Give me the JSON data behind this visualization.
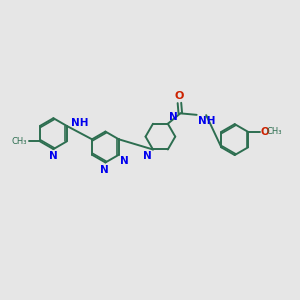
{
  "bg_color": "#e6e6e6",
  "bond_color": "#2d6e50",
  "N_color": "#0000ee",
  "O_color": "#cc2200",
  "line_width": 1.4,
  "font_size": 7.5,
  "fig_size": [
    3.0,
    3.0
  ],
  "dpi": 100,
  "xlim": [
    0,
    10
  ],
  "ylim": [
    0,
    10
  ]
}
